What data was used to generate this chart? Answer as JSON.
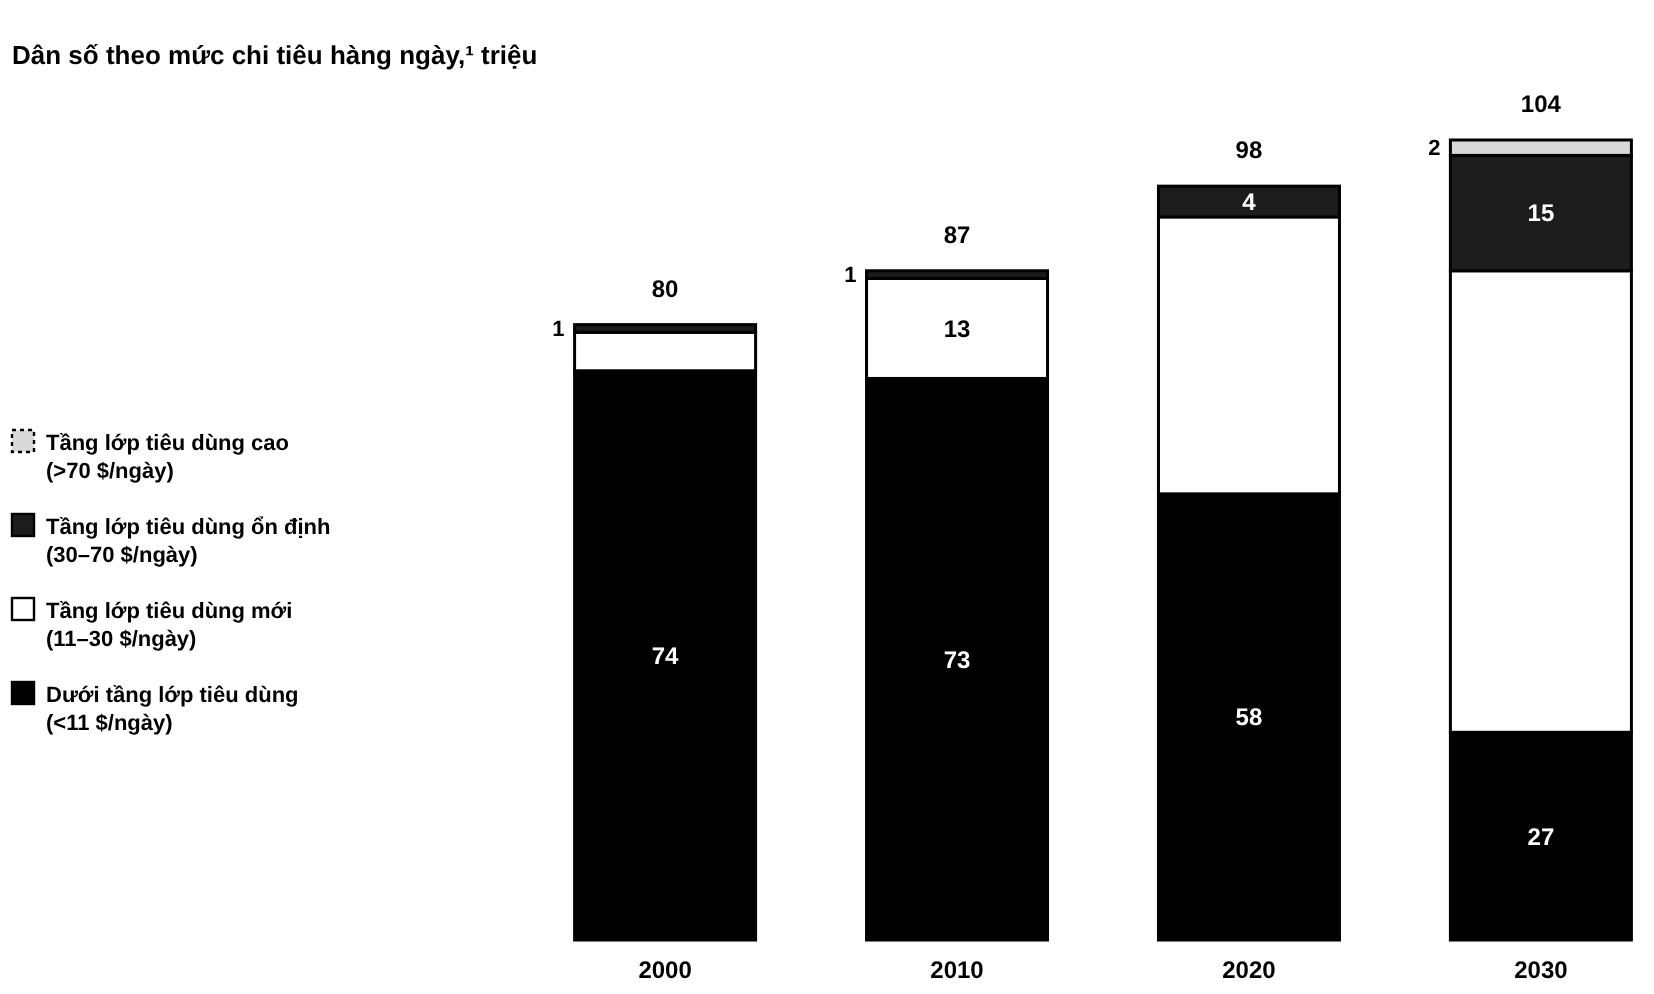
{
  "chart_data": {
    "type": "bar",
    "stacked": true,
    "title": "Dân số theo mức chi tiêu hàng ngày,¹ triệu",
    "categories": [
      "2000",
      "2010",
      "2020",
      "2030"
    ],
    "series": [
      {
        "name": "Dưới tầng lớp tiêu dùng (<11 $/ngày)",
        "color": "#000000",
        "values": [
          74,
          73,
          58,
          27
        ],
        "value_labels": [
          "74",
          "73",
          "58",
          "27"
        ]
      },
      {
        "name": "Tầng lớp tiêu dùng mới (11–30 $/ngày)",
        "color": "#ffffff",
        "values": [
          5,
          13,
          36,
          60
        ],
        "value_labels": [
          null,
          "13",
          null,
          null
        ]
      },
      {
        "name": "Tầng lớp tiêu dùng ổn định (30–70 $/ngày)",
        "color": "#1c1c1c",
        "values": [
          1,
          1,
          4,
          15
        ],
        "value_labels": [
          "1",
          "1",
          "4",
          "15"
        ]
      },
      {
        "name": "Tầng lớp tiêu dùng cao (>70 $/ngày)",
        "color": "#d9d9d9",
        "values": [
          0,
          0,
          0,
          2
        ],
        "value_labels": [
          null,
          null,
          null,
          "2"
        ]
      }
    ],
    "totals": [
      "80",
      "87",
      "98",
      "104"
    ],
    "legend": "left"
  }
}
